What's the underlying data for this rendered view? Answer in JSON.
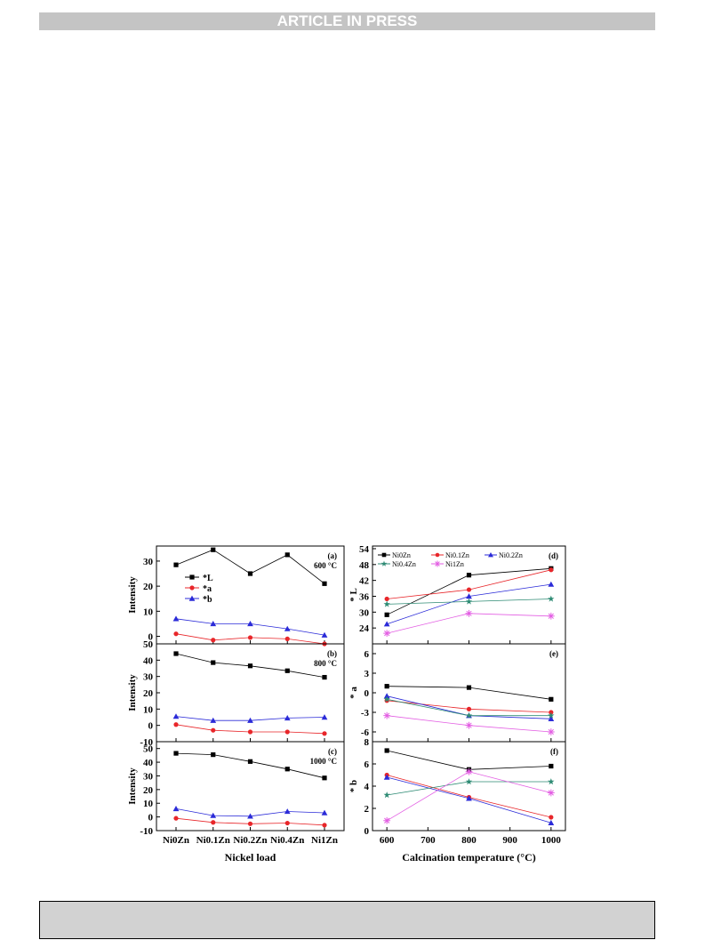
{
  "header": {
    "banner": "ARTICLE IN PRESS"
  },
  "colors": {
    "L": "#000000",
    "a": "#e8262a",
    "b": "#2b2bd8",
    "Ni0Zn": "#000000",
    "Ni0.1Zn": "#e8262a",
    "Ni0.2Zn": "#2b2bd8",
    "Ni0.4Zn": "#2e8b74",
    "Ni1Zn": "#e35ee3"
  },
  "chart_data": [
    {
      "id": "a",
      "type": "line",
      "panel_label": "(a)",
      "temp_label": "600 °C",
      "ylabel": "Intensity",
      "xlabel": "",
      "categories": [
        "Ni0Zn",
        "Ni0.1Zn",
        "Ni0.2Zn",
        "Ni0.4Zn",
        "Ni1Zn"
      ],
      "ylim": [
        -3,
        36
      ],
      "yticks": [
        0,
        10,
        20,
        30
      ],
      "legend": [
        "*L",
        "*a",
        "*b"
      ],
      "series": [
        {
          "name": "*L",
          "values": [
            28.5,
            34.5,
            25,
            32.5,
            21
          ]
        },
        {
          "name": "*a",
          "values": [
            1,
            -1.5,
            -0.5,
            -1,
            -3
          ]
        },
        {
          "name": "*b",
          "values": [
            7,
            5,
            5,
            3,
            0.5
          ]
        }
      ]
    },
    {
      "id": "b",
      "type": "line",
      "panel_label": "(b)",
      "temp_label": "800 °C",
      "ylabel": "Intensity",
      "xlabel": "",
      "categories": [
        "Ni0Zn",
        "Ni0.1Zn",
        "Ni0.2Zn",
        "Ni0.4Zn",
        "Ni1Zn"
      ],
      "ylim": [
        -10,
        50
      ],
      "yticks": [
        -10,
        0,
        10,
        20,
        30,
        40,
        50
      ],
      "series": [
        {
          "name": "*L",
          "values": [
            44,
            38.5,
            36.5,
            33.5,
            29.5
          ]
        },
        {
          "name": "*a",
          "values": [
            0.5,
            -3,
            -4,
            -4,
            -5
          ]
        },
        {
          "name": "*b",
          "values": [
            5.5,
            3,
            3,
            4.5,
            5
          ]
        }
      ]
    },
    {
      "id": "c",
      "type": "line",
      "panel_label": "(c)",
      "temp_label": "1000 °C",
      "ylabel": "Intensity",
      "xlabel": "Nickel load",
      "categories": [
        "Ni0Zn",
        "Ni0.1Zn",
        "Ni0.2Zn",
        "Ni0.4Zn",
        "Ni1Zn"
      ],
      "ylim": [
        -10,
        55
      ],
      "yticks": [
        -10,
        0,
        10,
        20,
        30,
        40,
        50
      ],
      "series": [
        {
          "name": "*L",
          "values": [
            46.5,
            45.5,
            40.5,
            35,
            28.5
          ]
        },
        {
          "name": "*a",
          "values": [
            -1,
            -4,
            -5,
            -4.5,
            -6
          ]
        },
        {
          "name": "*b",
          "values": [
            6,
            1,
            0.5,
            4,
            3
          ]
        }
      ]
    },
    {
      "id": "d",
      "type": "line",
      "panel_label": "(d)",
      "ylabel": "* L",
      "xlabel": "",
      "x": [
        600,
        800,
        1000
      ],
      "xlim": [
        565,
        1035
      ],
      "ylim": [
        18,
        55
      ],
      "yticks": [
        24,
        30,
        36,
        42,
        48,
        54
      ],
      "legend": [
        "Ni0Zn",
        "Ni0.1Zn",
        "Ni0.2Zn",
        "Ni0.4Zn",
        "Ni1Zn"
      ],
      "series": [
        {
          "name": "Ni0Zn",
          "values": [
            29,
            44,
            46.5
          ]
        },
        {
          "name": "Ni0.1Zn",
          "values": [
            35,
            38.5,
            46
          ]
        },
        {
          "name": "Ni0.2Zn",
          "values": [
            25.5,
            36,
            40.5
          ]
        },
        {
          "name": "Ni0.4Zn",
          "values": [
            33,
            34,
            35
          ]
        },
        {
          "name": "Ni1Zn",
          "values": [
            22,
            29.5,
            28.5
          ]
        }
      ]
    },
    {
      "id": "e",
      "type": "line",
      "panel_label": "(e)",
      "ylabel": "* a",
      "xlabel": "",
      "x": [
        600,
        800,
        1000
      ],
      "xlim": [
        565,
        1035
      ],
      "ylim": [
        -7.5,
        7.5
      ],
      "yticks": [
        -6,
        -3,
        0,
        3,
        6
      ],
      "series": [
        {
          "name": "Ni0Zn",
          "values": [
            1,
            0.8,
            -1
          ]
        },
        {
          "name": "Ni0.1Zn",
          "values": [
            -1.2,
            -2.5,
            -3
          ]
        },
        {
          "name": "Ni0.2Zn",
          "values": [
            -0.5,
            -3.5,
            -4
          ]
        },
        {
          "name": "Ni0.4Zn",
          "values": [
            -1,
            -3.5,
            -3.5
          ]
        },
        {
          "name": "Ni1Zn",
          "values": [
            -3.5,
            -5,
            -6
          ]
        }
      ]
    },
    {
      "id": "f",
      "type": "line",
      "panel_label": "(f)",
      "ylabel": "* b",
      "xlabel": "Calcination temperature (°C)",
      "x": [
        600,
        800,
        1000
      ],
      "xlim": [
        565,
        1035
      ],
      "ylim": [
        0,
        8
      ],
      "yticks": [
        0,
        2,
        4,
        6,
        8
      ],
      "xticks": [
        600,
        700,
        800,
        900,
        1000
      ],
      "series": [
        {
          "name": "Ni0Zn",
          "values": [
            7.2,
            5.5,
            5.8
          ]
        },
        {
          "name": "Ni0.1Zn",
          "values": [
            5,
            3,
            1.2
          ]
        },
        {
          "name": "Ni0.2Zn",
          "values": [
            4.8,
            2.9,
            0.7
          ]
        },
        {
          "name": "Ni0.4Zn",
          "values": [
            3.2,
            4.4,
            4.4
          ]
        },
        {
          "name": "Ni1Zn",
          "values": [
            0.9,
            5.3,
            3.4
          ]
        }
      ]
    }
  ]
}
